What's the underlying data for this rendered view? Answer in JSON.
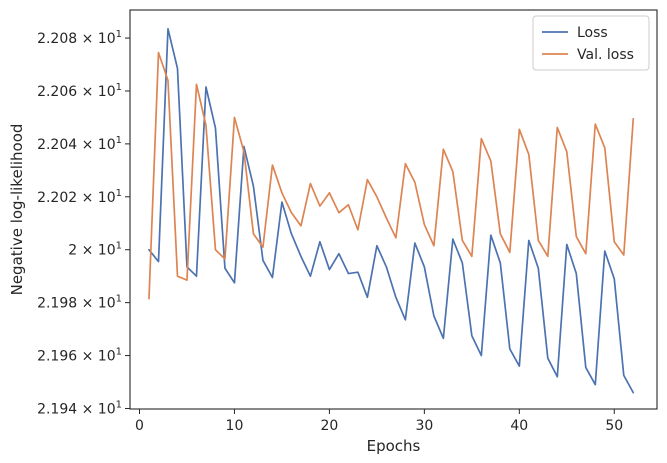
{
  "chart_data": {
    "type": "line",
    "xlabel": "Epochs",
    "ylabel": "Negative log-likelihood",
    "xlim": [
      -1,
      54.5
    ],
    "ylim": [
      21.9398,
      22.0906
    ],
    "x_ticks": [
      {
        "value": 0,
        "label": "0"
      },
      {
        "value": 10,
        "label": "10"
      },
      {
        "value": 20,
        "label": "20"
      },
      {
        "value": 30,
        "label": "30"
      },
      {
        "value": 40,
        "label": "40"
      },
      {
        "value": 50,
        "label": "50"
      }
    ],
    "y_ticks": [
      {
        "value": 21.94,
        "mantissa": "2.194",
        "base": "10",
        "exp": "1"
      },
      {
        "value": 21.96,
        "mantissa": "2.196",
        "base": "10",
        "exp": "1"
      },
      {
        "value": 21.98,
        "mantissa": "2.198",
        "base": "10",
        "exp": "1"
      },
      {
        "value": 22.0,
        "mantissa": "2",
        "base": "10",
        "exp": "1"
      },
      {
        "value": 22.02,
        "mantissa": "2.202",
        "base": "10",
        "exp": "1"
      },
      {
        "value": 22.04,
        "mantissa": "2.204",
        "base": "10",
        "exp": "1"
      },
      {
        "value": 22.06,
        "mantissa": "2.206",
        "base": "10",
        "exp": "1"
      },
      {
        "value": 22.08,
        "mantissa": "2.208",
        "base": "10",
        "exp": "1"
      }
    ],
    "grid": false,
    "legend_position": "top-right",
    "x": [
      1,
      2,
      3,
      4,
      5,
      6,
      7,
      8,
      9,
      10,
      11,
      12,
      13,
      14,
      15,
      16,
      17,
      18,
      19,
      20,
      21,
      22,
      23,
      24,
      25,
      26,
      27,
      28,
      29,
      30,
      31,
      32,
      33,
      34,
      35,
      36,
      37,
      38,
      39,
      40,
      41,
      42,
      43,
      44,
      45,
      46,
      47,
      48,
      49,
      50,
      51,
      52
    ],
    "series": [
      {
        "name": "Loss",
        "color": "#4c72b0",
        "values": [
          22.0,
          21.9955,
          22.0835,
          22.0685,
          21.9935,
          21.99,
          22.0615,
          22.046,
          21.993,
          21.9875,
          22.039,
          22.024,
          21.996,
          21.9895,
          22.018,
          22.006,
          21.9975,
          21.99,
          22.003,
          21.9925,
          21.9985,
          21.991,
          21.9915,
          21.982,
          22.0015,
          21.9935,
          21.982,
          21.9735,
          22.0025,
          21.9935,
          21.975,
          21.9665,
          22.004,
          21.995,
          21.9675,
          21.96,
          22.0055,
          21.995,
          21.9625,
          21.956,
          22.0035,
          21.993,
          21.959,
          21.952,
          22.002,
          21.991,
          21.9555,
          21.949,
          21.9995,
          21.989,
          21.9525,
          21.946
        ]
      },
      {
        "name": "Val. loss",
        "color": "#dd8452",
        "values": [
          21.9815,
          22.0745,
          22.064,
          21.99,
          21.9885,
          22.0625,
          22.047,
          22.0,
          21.9965,
          22.05,
          22.037,
          22.006,
          22.001,
          22.032,
          22.0215,
          22.014,
          22.009,
          22.025,
          22.0165,
          22.0215,
          22.014,
          22.017,
          22.0075,
          22.0265,
          22.02,
          22.012,
          22.0045,
          22.0325,
          22.0255,
          22.0095,
          22.0015,
          22.038,
          22.0295,
          22.0035,
          21.9975,
          22.042,
          22.0335,
          22.006,
          21.999,
          22.0455,
          22.036,
          22.0035,
          21.9975,
          22.0462,
          22.037,
          22.005,
          21.9985,
          22.0475,
          22.0385,
          22.003,
          21.998,
          22.0495
        ]
      }
    ]
  }
}
